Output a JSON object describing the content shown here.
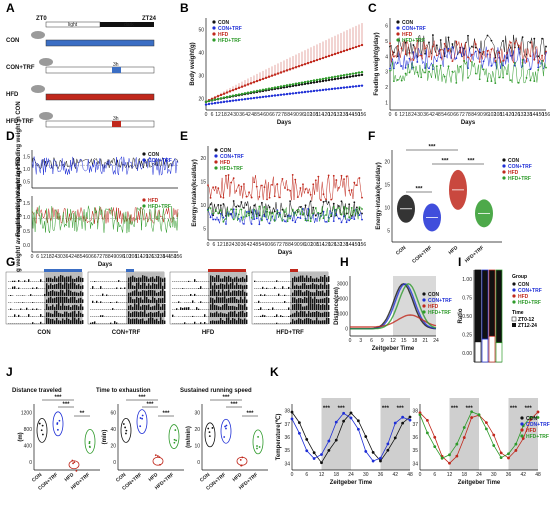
{
  "colors": {
    "con": "#111111",
    "contrf": "#1f2fd6",
    "hfd": "#c0281c",
    "hfdtrf": "#2e9a2a",
    "grey": "#bdbdbd",
    "dark": "#111111"
  },
  "panel_letters": [
    "A",
    "B",
    "C",
    "D",
    "E",
    "F",
    "G",
    "H",
    "I",
    "J",
    "K"
  ],
  "groups": {
    "con": "CON",
    "contrf": "CON+TRF",
    "hfd": "HFD",
    "hfdtrf": "HFD+TRF"
  },
  "panelA": {
    "zt0": "ZT0",
    "zt24": "ZT24",
    "light": "light",
    "dark": "dark",
    "rows": [
      {
        "label": "CON",
        "bar": "con",
        "restricted": false
      },
      {
        "label": "CON+TRF",
        "bar": "con",
        "restricted": true,
        "window": "3h"
      },
      {
        "label": "HFD",
        "bar": "hfd",
        "restricted": false
      },
      {
        "label": "HFD+TRF",
        "bar": "hfd",
        "restricted": true,
        "window": "3h"
      }
    ]
  },
  "days_ticks": [
    "0",
    "6",
    "12",
    "18",
    "24",
    "30",
    "36",
    "42",
    "48",
    "54",
    "60",
    "66",
    "72",
    "78",
    "84",
    "90",
    "96",
    "102",
    "108",
    "114",
    "120",
    "126",
    "132",
    "138",
    "144",
    "150",
    "156"
  ],
  "panelB": {
    "ylabel": "Body weight(g)",
    "xlabel": "Days",
    "yticks": [
      "20",
      "30",
      "40",
      "50"
    ],
    "chart_data": {
      "type": "line",
      "x_range": [
        0,
        156
      ],
      "ylim": [
        18,
        52
      ],
      "series": [
        {
          "name": "CON",
          "color": "con",
          "start": 21,
          "end": 31
        },
        {
          "name": "CON+TRF",
          "color": "contrf",
          "start": 20,
          "end": 27
        },
        {
          "name": "HFD",
          "color": "hfd",
          "start": 21,
          "end": 42
        },
        {
          "name": "HFD+TRF",
          "color": "hfdtrf",
          "start": 21,
          "end": 32
        }
      ]
    }
  },
  "panelC": {
    "ylabel": "Feeding weight(g/day)",
    "xlabel": "Days",
    "yticks": [
      "1",
      "2",
      "3",
      "4",
      "5",
      "6"
    ],
    "chart_data": {
      "type": "line",
      "ylim": [
        0.5,
        6
      ],
      "series": [
        {
          "name": "CON",
          "color": "con",
          "level": 4.3
        },
        {
          "name": "CON+TRF",
          "color": "contrf",
          "level": 3.6
        },
        {
          "name": "HFD",
          "color": "hfd",
          "level": 4.0
        },
        {
          "name": "HFD+TRF",
          "color": "hfdtrf",
          "level": 2.8
        }
      ]
    }
  },
  "panelD": {
    "ylabel_top": "Feeding weight/ average feeding weight in CON",
    "ylabel_bottom": "Feeding weight/ average feeding weight in HFD",
    "xlabel": "Days",
    "yticks_top": [
      "0.5",
      "1.0",
      "1.5"
    ],
    "yticks_bottom": [
      "0.0",
      "0.5",
      "1.0",
      "1.5"
    ]
  },
  "panelE": {
    "ylabel": "Energy-intake(kcal/day)",
    "xlabel": "Days",
    "yticks": [
      "5",
      "10",
      "15",
      "20"
    ],
    "chart_data": {
      "type": "line",
      "ylim": [
        4,
        22
      ],
      "series": [
        {
          "name": "CON",
          "color": "con",
          "level": 10
        },
        {
          "name": "CON+TRF",
          "color": "contrf",
          "level": 8.5
        },
        {
          "name": "HFD",
          "color": "hfd",
          "level": 14
        },
        {
          "name": "HFD+TRF",
          "color": "hfdtrf",
          "level": 9
        }
      ]
    }
  },
  "panelF": {
    "ylabel": "Energy-intake(kcal/day)",
    "yticks": [
      "5",
      "10",
      "15",
      "20"
    ],
    "sig": [
      "***",
      "***",
      "***",
      "***"
    ],
    "chart_data": {
      "type": "violin",
      "ylim": [
        4,
        22
      ],
      "categories": [
        "CON",
        "CON+TRF",
        "HFD",
        "HFD+TRF"
      ],
      "medians": [
        10.5,
        8.8,
        14.2,
        9.6
      ]
    }
  },
  "panelG": {
    "labels": [
      "CON",
      "CON+TRF",
      "HFD",
      "HFD+TRF"
    ]
  },
  "panelH": {
    "ylabel": "Distance(cm)",
    "xlabel": "Zeitgeber Time",
    "yticks": [
      "0",
      "1000",
      "2000",
      "3000"
    ],
    "xticks": [
      "0",
      "3",
      "6",
      "9",
      "12",
      "15",
      "18",
      "21",
      "24"
    ]
  },
  "panelI": {
    "ylabel": "Ratio",
    "yticks": [
      "0.00",
      "0.25",
      "0.50",
      "0.75",
      "1.00"
    ],
    "legend_group": "Group",
    "legend_time": "Time",
    "time_items": [
      "ZT0-12",
      "ZT12-24"
    ],
    "chart_data": {
      "type": "bar",
      "categories": [
        "CON",
        "CON+TRF",
        "HFD",
        "HFD+TRF"
      ],
      "series": [
        {
          "name": "ZT0-12",
          "values": [
            0.22,
            0.25,
            0.28,
            0.21
          ]
        },
        {
          "name": "ZT12-24",
          "values": [
            0.78,
            0.75,
            0.72,
            0.79
          ]
        }
      ]
    }
  },
  "panelJ": [
    {
      "title": "Distance traveled",
      "ylabel": "(m)",
      "yticks": [
        "0",
        "400",
        "800",
        "1200"
      ],
      "sig": [
        "***",
        "***",
        "**"
      ],
      "means": [
        900,
        1050,
        120,
        650
      ]
    },
    {
      "title": "Time to exhaustion",
      "ylabel": "(min)",
      "yticks": [
        "0",
        "20",
        "40",
        "60"
      ],
      "sig": [
        "***",
        "***",
        "***"
      ],
      "means": [
        45,
        55,
        10,
        38
      ]
    },
    {
      "title": "Sustained running speed",
      "ylabel": "(m/min)",
      "yticks": [
        "0",
        "10",
        "20",
        "30"
      ],
      "sig": [
        "***",
        "***",
        "***"
      ],
      "means": [
        20,
        22,
        5,
        16
      ]
    }
  ],
  "panelK": {
    "ylabel": "Temperature(℃)",
    "xlabel": "Zeitgeber Time",
    "xticks": [
      "0",
      "6",
      "12",
      "18",
      "24",
      "30",
      "36",
      "42",
      "48"
    ],
    "yticks": [
      "34",
      "35",
      "36",
      "37",
      "38"
    ],
    "sig": "***"
  }
}
